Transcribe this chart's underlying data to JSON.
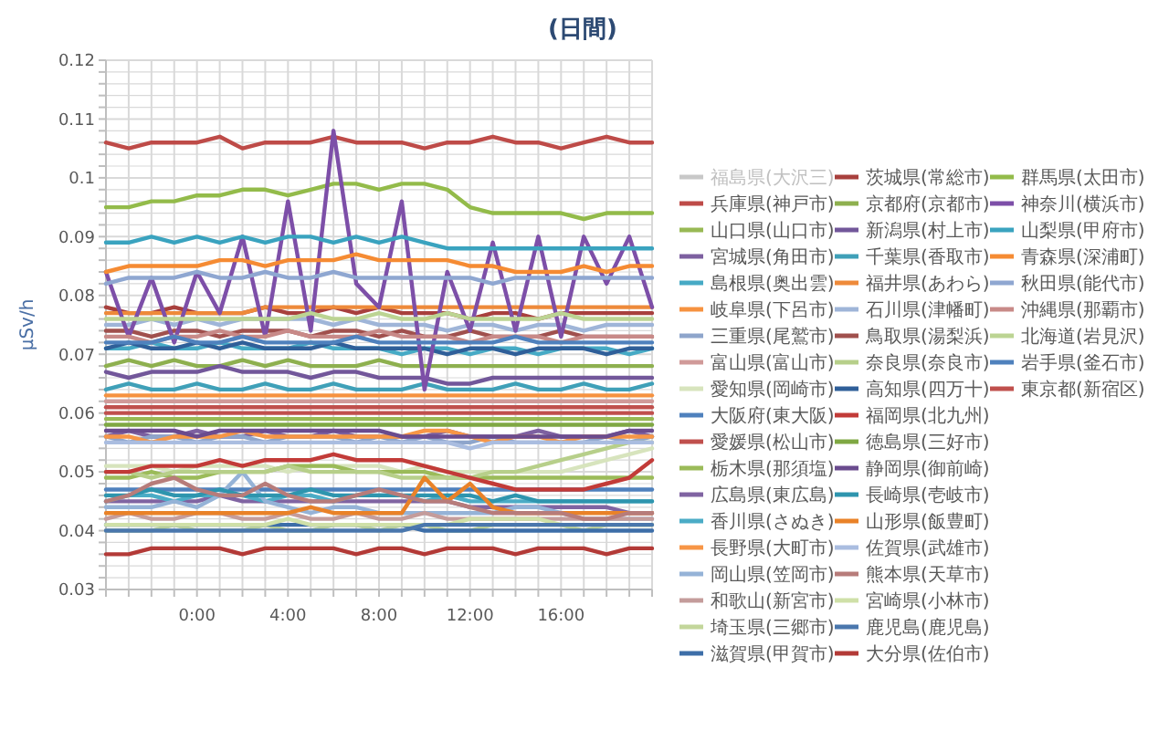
{
  "chart_data": {
    "type": "line",
    "title": "(日間)",
    "ylabel": "μSv/h",
    "legend": "right",
    "grid": true,
    "marker": "none",
    "line_style": "solid",
    "x": [
      -4,
      -3,
      -2,
      -1,
      0,
      1,
      2,
      3,
      4,
      5,
      6,
      7,
      8,
      9,
      10,
      11,
      12,
      13,
      14,
      15,
      16,
      17,
      18,
      19,
      20
    ],
    "xlim": [
      -4,
      20
    ],
    "xticks": [
      {
        "value": -4,
        "label": null
      },
      {
        "value": -3,
        "label": null
      },
      {
        "value": -2,
        "label": null
      },
      {
        "value": -1,
        "label": null
      },
      {
        "value": 0,
        "label": "0:00"
      },
      {
        "value": 1,
        "label": null
      },
      {
        "value": 2,
        "label": null
      },
      {
        "value": 3,
        "label": null
      },
      {
        "value": 4,
        "label": "4:00"
      },
      {
        "value": 5,
        "label": null
      },
      {
        "value": 6,
        "label": null
      },
      {
        "value": 7,
        "label": null
      },
      {
        "value": 8,
        "label": "8:00"
      },
      {
        "value": 9,
        "label": null
      },
      {
        "value": 10,
        "label": null
      },
      {
        "value": 11,
        "label": null
      },
      {
        "value": 12,
        "label": "12:00"
      },
      {
        "value": 13,
        "label": null
      },
      {
        "value": 14,
        "label": null
      },
      {
        "value": 15,
        "label": null
      },
      {
        "value": 16,
        "label": "16:00"
      },
      {
        "value": 17,
        "label": null
      },
      {
        "value": 18,
        "label": null
      },
      {
        "value": 19,
        "label": null
      },
      {
        "value": 20,
        "label": null
      }
    ],
    "ylim": [
      0.03,
      0.12
    ],
    "yticks": [
      0.03,
      {
        "value": 0.032,
        "label": null
      },
      {
        "value": 0.034,
        "label": null
      },
      {
        "value": 0.036,
        "label": null
      },
      {
        "value": 0.038,
        "label": null
      },
      0.04,
      {
        "value": 0.042,
        "label": null
      },
      {
        "value": 0.044,
        "label": null
      },
      {
        "value": 0.046,
        "label": null
      },
      {
        "value": 0.048,
        "label": null
      },
      0.05,
      {
        "value": 0.052,
        "label": null
      },
      {
        "value": 0.054,
        "label": null
      },
      {
        "value": 0.056,
        "label": null
      },
      {
        "value": 0.058,
        "label": null
      },
      0.06,
      {
        "value": 0.062,
        "label": null
      },
      {
        "value": 0.064,
        "label": null
      },
      {
        "value": 0.066,
        "label": null
      },
      {
        "value": 0.068,
        "label": null
      },
      0.07,
      {
        "value": 0.072,
        "label": null
      },
      {
        "value": 0.074,
        "label": null
      },
      {
        "value": 0.076,
        "label": null
      },
      {
        "value": 0.078,
        "label": null
      },
      0.08,
      {
        "value": 0.082,
        "label": null
      },
      {
        "value": 0.084,
        "label": null
      },
      {
        "value": 0.086,
        "label": null
      },
      {
        "value": 0.088,
        "label": null
      },
      0.09,
      {
        "value": 0.092,
        "label": null
      },
      {
        "value": 0.094,
        "label": null
      },
      {
        "value": 0.096,
        "label": null
      },
      {
        "value": 0.098,
        "label": null
      },
      {
        "value": 0.1,
        "label": "0.1"
      },
      {
        "value": 0.102,
        "label": null
      },
      {
        "value": 0.104,
        "label": null
      },
      {
        "value": 0.106,
        "label": null
      },
      {
        "value": 0.108,
        "label": null
      },
      0.11,
      {
        "value": 0.112,
        "label": null
      },
      {
        "value": 0.114,
        "label": null
      },
      {
        "value": 0.116,
        "label": null
      },
      {
        "value": 0.118,
        "label": null
      },
      0.12
    ],
    "series": [
      {
        "name": "福島県(大沢三)",
        "color": "#c8c8c8",
        "values": [
          null,
          null,
          null,
          null,
          null,
          null,
          null,
          null,
          null,
          null,
          null,
          null,
          null,
          null,
          null,
          null,
          null,
          null,
          null,
          null,
          null,
          null,
          null,
          null,
          null
        ]
      },
      {
        "name": "兵庫県(神戸市)",
        "color": "#be4b48",
        "values": [
          0.106,
          0.105,
          0.106,
          0.106,
          0.106,
          0.107,
          0.105,
          0.106,
          0.106,
          0.106,
          0.107,
          0.106,
          0.106,
          0.106,
          0.105,
          0.106,
          0.106,
          0.107,
          0.106,
          0.106,
          0.105,
          0.106,
          0.107,
          0.106,
          0.106
        ]
      },
      {
        "name": "山口県(山口市)",
        "color": "#98b954",
        "values": [
          0.059,
          0.059,
          0.059,
          0.059,
          0.059,
          0.059,
          0.059,
          0.059,
          0.059,
          0.059,
          0.059,
          0.059,
          0.059,
          0.059,
          0.059,
          0.059,
          0.059,
          0.059,
          0.059,
          0.059,
          0.059,
          0.059,
          0.059,
          0.059,
          0.059
        ]
      },
      {
        "name": "宮城県(角田市)",
        "color": "#7d60a0",
        "values": [
          0.056,
          0.057,
          0.056,
          0.056,
          0.057,
          0.056,
          0.056,
          0.057,
          0.056,
          0.056,
          0.057,
          0.056,
          0.056,
          0.056,
          0.056,
          0.057,
          0.056,
          0.056,
          0.056,
          0.057,
          0.056,
          0.056,
          0.056,
          0.057,
          0.056
        ]
      },
      {
        "name": "島根県(奥出雲)",
        "color": "#46aac5",
        "values": [
          0.071,
          0.071,
          0.072,
          0.071,
          0.071,
          0.072,
          0.071,
          0.071,
          0.071,
          0.072,
          0.071,
          0.071,
          0.071,
          0.07,
          0.071,
          0.071,
          0.07,
          0.071,
          0.071,
          0.07,
          0.071,
          0.071,
          0.071,
          0.07,
          0.071
        ]
      },
      {
        "name": "岐阜県(下呂市)",
        "color": "#f69240",
        "values": [
          0.063,
          0.063,
          0.063,
          0.063,
          0.063,
          0.063,
          0.063,
          0.063,
          0.063,
          0.063,
          0.063,
          0.063,
          0.063,
          0.063,
          0.063,
          0.063,
          0.063,
          0.063,
          0.063,
          0.063,
          0.063,
          0.063,
          0.063,
          0.063,
          0.063
        ]
      },
      {
        "name": "三重県(尾鷲市)",
        "color": "#8ea5cb",
        "values": [
          0.056,
          0.055,
          0.056,
          0.056,
          0.055,
          0.056,
          0.056,
          0.055,
          0.056,
          0.056,
          0.056,
          0.055,
          0.056,
          0.055,
          0.056,
          0.055,
          0.055,
          0.056,
          0.055,
          0.055,
          0.055,
          0.055,
          0.056,
          0.055,
          0.056
        ]
      },
      {
        "name": "富山県(富山市)",
        "color": "#d09a99",
        "values": [
          0.062,
          0.062,
          0.062,
          0.062,
          0.062,
          0.062,
          0.062,
          0.062,
          0.062,
          0.062,
          0.062,
          0.062,
          0.062,
          0.062,
          0.062,
          0.062,
          0.062,
          0.062,
          0.062,
          0.062,
          0.062,
          0.062,
          0.062,
          0.062,
          0.062
        ]
      },
      {
        "name": "愛知県(岡崎市)",
        "color": "#d7e4bd",
        "values": [
          0.051,
          0.051,
          0.051,
          0.05,
          0.051,
          0.051,
          0.051,
          0.051,
          0.05,
          0.051,
          0.051,
          0.051,
          0.051,
          0.05,
          0.051,
          0.05,
          0.05,
          0.05,
          0.05,
          0.05,
          0.05,
          0.051,
          0.052,
          0.053,
          0.054
        ]
      },
      {
        "name": "大阪府(東大阪)",
        "color": "#4f81bd",
        "values": [
          0.047,
          0.047,
          0.047,
          0.047,
          0.047,
          0.047,
          0.047,
          0.047,
          0.047,
          0.047,
          0.047,
          0.047,
          0.047,
          0.047,
          0.047,
          0.047,
          0.047,
          0.047,
          0.047,
          0.047,
          0.047,
          0.047,
          0.047,
          0.047,
          0.047
        ]
      },
      {
        "name": "愛媛県(松山市)",
        "color": "#c0504d",
        "values": [
          0.061,
          0.061,
          0.061,
          0.061,
          0.061,
          0.061,
          0.061,
          0.061,
          0.061,
          0.061,
          0.061,
          0.061,
          0.061,
          0.061,
          0.061,
          0.061,
          0.061,
          0.061,
          0.061,
          0.061,
          0.061,
          0.061,
          0.061,
          0.061,
          0.061
        ]
      },
      {
        "name": "栃木県(那須塩)",
        "color": "#9bbb59",
        "values": [
          0.049,
          0.049,
          0.05,
          0.049,
          0.049,
          0.05,
          0.05,
          0.05,
          0.051,
          0.051,
          0.051,
          0.05,
          0.05,
          0.05,
          0.05,
          0.049,
          0.049,
          0.049,
          0.049,
          0.049,
          0.049,
          0.049,
          0.049,
          0.049,
          0.049
        ]
      },
      {
        "name": "広島県(東広島)",
        "color": "#8064a2",
        "values": [
          0.045,
          0.045,
          0.045,
          0.045,
          0.045,
          0.046,
          0.045,
          0.045,
          0.045,
          0.045,
          0.045,
          0.045,
          0.045,
          0.045,
          0.045,
          0.045,
          0.044,
          0.044,
          0.044,
          0.044,
          0.044,
          0.044,
          0.044,
          0.043,
          0.043
        ]
      },
      {
        "name": "香川県(さぬき)",
        "color": "#4bacc6",
        "values": [
          0.045,
          0.046,
          0.046,
          0.045,
          0.046,
          0.046,
          0.046,
          0.045,
          0.046,
          0.046,
          0.045,
          0.046,
          0.046,
          0.046,
          0.045,
          0.046,
          0.045,
          0.045,
          0.045,
          0.045,
          0.045,
          0.045,
          0.045,
          0.045,
          0.045
        ]
      },
      {
        "name": "長野県(大町市)",
        "color": "#f79646",
        "values": [
          0.056,
          0.056,
          0.055,
          0.056,
          0.056,
          0.056,
          0.057,
          0.056,
          0.056,
          0.056,
          0.056,
          0.056,
          0.056,
          0.056,
          0.057,
          0.057,
          0.056,
          0.055,
          0.056,
          0.056,
          0.055,
          0.056,
          0.056,
          0.056,
          0.056
        ]
      },
      {
        "name": "岡山県(笠岡市)",
        "color": "#95b3d7",
        "values": [
          0.044,
          0.044,
          0.044,
          0.045,
          0.044,
          0.046,
          0.05,
          0.045,
          0.044,
          0.043,
          0.044,
          0.044,
          0.043,
          0.043,
          0.043,
          0.043,
          0.043,
          0.043,
          0.044,
          0.044,
          0.043,
          0.042,
          0.042,
          0.042,
          0.042
        ]
      },
      {
        "name": "和歌山(新宮市)",
        "color": "#c49c9b",
        "values": [
          0.042,
          0.043,
          0.042,
          0.042,
          0.043,
          0.043,
          0.042,
          0.042,
          0.043,
          0.042,
          0.042,
          0.043,
          0.042,
          0.042,
          0.043,
          0.042,
          0.042,
          0.042,
          0.042,
          0.042,
          0.042,
          0.042,
          0.042,
          0.042,
          0.042
        ]
      },
      {
        "name": "埼玉県(三郷市)",
        "color": "#c3d69b",
        "values": [
          0.04,
          0.04,
          0.04,
          0.041,
          0.04,
          0.04,
          0.04,
          0.041,
          0.04,
          0.04,
          0.041,
          0.041,
          0.04,
          0.041,
          0.041,
          0.04,
          0.04,
          0.041,
          0.041,
          0.041,
          0.041,
          0.04,
          0.041,
          0.041,
          0.041
        ]
      },
      {
        "name": "滋賀県(甲賀市)",
        "color": "#3d6ea8",
        "values": [
          0.041,
          0.041,
          0.041,
          0.041,
          0.041,
          0.041,
          0.041,
          0.041,
          0.041,
          0.041,
          0.041,
          0.041,
          0.041,
          0.041,
          0.04,
          0.04,
          0.04,
          0.04,
          0.04,
          0.04,
          0.04,
          0.04,
          0.04,
          0.04,
          0.04
        ]
      },
      {
        "name": "茨城県(常総市)",
        "color": "#a8403d",
        "values": [
          0.078,
          0.077,
          0.077,
          0.078,
          0.077,
          0.077,
          0.077,
          0.078,
          0.077,
          0.077,
          0.078,
          0.077,
          0.078,
          0.077,
          0.077,
          0.077,
          0.076,
          0.077,
          0.077,
          0.076,
          0.077,
          0.077,
          0.077,
          0.077,
          0.077
        ]
      },
      {
        "name": "京都府(京都市)",
        "color": "#8eb04f",
        "values": [
          0.068,
          0.069,
          0.068,
          0.069,
          0.068,
          0.068,
          0.069,
          0.068,
          0.069,
          0.068,
          0.068,
          0.068,
          0.069,
          0.068,
          0.068,
          0.068,
          0.068,
          0.068,
          0.068,
          0.068,
          0.068,
          0.068,
          0.068,
          0.068,
          0.068
        ]
      },
      {
        "name": "新潟県(村上市)",
        "color": "#72579a",
        "values": [
          0.067,
          0.066,
          0.067,
          0.067,
          0.067,
          0.068,
          0.067,
          0.067,
          0.067,
          0.066,
          0.067,
          0.067,
          0.066,
          0.066,
          0.066,
          0.065,
          0.065,
          0.066,
          0.066,
          0.066,
          0.066,
          0.066,
          0.066,
          0.066,
          0.066
        ]
      },
      {
        "name": "千葉県(香取市)",
        "color": "#3fa0b8",
        "values": [
          0.064,
          0.065,
          0.064,
          0.064,
          0.065,
          0.064,
          0.064,
          0.065,
          0.064,
          0.064,
          0.065,
          0.064,
          0.064,
          0.064,
          0.065,
          0.064,
          0.064,
          0.064,
          0.065,
          0.064,
          0.064,
          0.065,
          0.064,
          0.064,
          0.065
        ]
      },
      {
        "name": "福井県(あわら)",
        "color": "#ee8a3a",
        "values": [
          0.077,
          0.077,
          0.077,
          0.077,
          0.077,
          0.077,
          0.077,
          0.078,
          0.078,
          0.078,
          0.078,
          0.078,
          0.078,
          0.078,
          0.078,
          0.078,
          0.078,
          0.078,
          0.078,
          0.078,
          0.078,
          0.078,
          0.078,
          0.078,
          0.078
        ]
      },
      {
        "name": "石川県(津幡町)",
        "color": "#9fb5d8",
        "values": [
          0.075,
          0.075,
          0.076,
          0.075,
          0.076,
          0.075,
          0.076,
          0.076,
          0.076,
          0.076,
          0.075,
          0.076,
          0.075,
          0.075,
          0.075,
          0.074,
          0.075,
          0.075,
          0.074,
          0.075,
          0.075,
          0.074,
          0.075,
          0.075,
          0.075
        ]
      },
      {
        "name": "鳥取県(湯梨浜)",
        "color": "#a0504d",
        "values": [
          0.074,
          0.074,
          0.073,
          0.074,
          0.074,
          0.073,
          0.074,
          0.074,
          0.074,
          0.073,
          0.074,
          0.074,
          0.073,
          0.074,
          0.073,
          0.073,
          0.074,
          0.073,
          0.073,
          0.073,
          0.074,
          0.073,
          0.073,
          0.073,
          0.073
        ]
      },
      {
        "name": "奈良県(奈良市)",
        "color": "#b7cf8a",
        "values": [
          0.05,
          0.05,
          0.049,
          0.05,
          0.05,
          0.05,
          0.05,
          0.05,
          0.051,
          0.05,
          0.05,
          0.05,
          0.05,
          0.049,
          0.049,
          0.049,
          0.049,
          0.05,
          0.05,
          0.051,
          0.052,
          0.053,
          0.054,
          0.055,
          0.055
        ]
      },
      {
        "name": "高知県(四万十)",
        "color": "#2f5f99",
        "values": [
          0.071,
          0.072,
          0.071,
          0.071,
          0.072,
          0.071,
          0.072,
          0.071,
          0.071,
          0.071,
          0.072,
          0.071,
          0.071,
          0.071,
          0.071,
          0.07,
          0.071,
          0.071,
          0.07,
          0.071,
          0.071,
          0.071,
          0.07,
          0.071,
          0.071
        ]
      },
      {
        "name": "福岡県(北九州)",
        "color": "#c23b38",
        "values": [
          0.05,
          0.05,
          0.051,
          0.051,
          0.051,
          0.052,
          0.051,
          0.052,
          0.052,
          0.052,
          0.053,
          0.052,
          0.052,
          0.052,
          0.051,
          0.05,
          0.049,
          0.048,
          0.047,
          0.047,
          0.047,
          0.047,
          0.048,
          0.049,
          0.052
        ]
      },
      {
        "name": "徳島県(三好市)",
        "color": "#7fa843",
        "values": [
          0.058,
          0.058,
          0.058,
          0.058,
          0.058,
          0.058,
          0.058,
          0.058,
          0.058,
          0.058,
          0.058,
          0.058,
          0.058,
          0.058,
          0.058,
          0.058,
          0.058,
          0.058,
          0.058,
          0.058,
          0.058,
          0.058,
          0.058,
          0.058,
          0.058
        ]
      },
      {
        "name": "静岡県(御前崎)",
        "color": "#6a4b8e",
        "values": [
          0.057,
          0.057,
          0.057,
          0.057,
          0.056,
          0.057,
          0.057,
          0.057,
          0.057,
          0.057,
          0.057,
          0.057,
          0.057,
          0.056,
          0.056,
          0.056,
          0.056,
          0.056,
          0.056,
          0.056,
          0.056,
          0.056,
          0.056,
          0.057,
          0.057
        ]
      },
      {
        "name": "長崎県(壱岐市)",
        "color": "#2e95ae",
        "values": [
          0.046,
          0.046,
          0.047,
          0.046,
          0.046,
          0.047,
          0.046,
          0.046,
          0.046,
          0.047,
          0.046,
          0.046,
          0.046,
          0.046,
          0.046,
          0.046,
          0.046,
          0.045,
          0.046,
          0.045,
          0.045,
          0.045,
          0.045,
          0.045,
          0.045
        ]
      },
      {
        "name": "山形県(飯豊町)",
        "color": "#e98228",
        "values": [
          0.043,
          0.043,
          0.043,
          0.043,
          0.043,
          0.043,
          0.043,
          0.043,
          0.043,
          0.044,
          0.043,
          0.043,
          0.043,
          0.043,
          0.049,
          0.045,
          0.048,
          0.044,
          0.043,
          0.043,
          0.043,
          0.043,
          0.043,
          0.043,
          0.043
        ]
      },
      {
        "name": "佐賀県(武雄市)",
        "color": "#aabde0",
        "values": [
          0.055,
          0.055,
          0.055,
          0.055,
          0.055,
          0.055,
          0.055,
          0.055,
          0.055,
          0.055,
          0.055,
          0.055,
          0.055,
          0.055,
          0.055,
          0.055,
          0.054,
          0.055,
          0.055,
          0.055,
          0.055,
          0.055,
          0.055,
          0.055,
          0.055
        ]
      },
      {
        "name": "熊本県(天草市)",
        "color": "#b77c7a",
        "values": [
          0.045,
          0.046,
          0.048,
          0.049,
          0.047,
          0.046,
          0.046,
          0.048,
          0.046,
          0.045,
          0.045,
          0.046,
          0.047,
          0.046,
          0.045,
          0.045,
          0.044,
          0.043,
          0.043,
          0.043,
          0.043,
          0.042,
          0.042,
          0.043,
          0.043
        ]
      },
      {
        "name": "宮崎県(小林市)",
        "color": "#cfe0a8",
        "values": [
          0.041,
          0.041,
          0.041,
          0.041,
          0.041,
          0.041,
          0.041,
          0.041,
          0.042,
          0.041,
          0.041,
          0.041,
          0.041,
          0.041,
          0.041,
          0.041,
          0.042,
          0.042,
          0.042,
          0.042,
          0.041,
          0.041,
          0.041,
          0.041,
          0.041
        ]
      },
      {
        "name": "鹿児島(鹿児島)",
        "color": "#4a77ad",
        "values": [
          0.04,
          0.04,
          0.04,
          0.04,
          0.04,
          0.04,
          0.04,
          0.04,
          0.04,
          0.04,
          0.04,
          0.04,
          0.04,
          0.04,
          0.041,
          0.041,
          0.041,
          0.041,
          0.041,
          0.041,
          0.041,
          0.041,
          0.041,
          0.041,
          0.041
        ]
      },
      {
        "name": "大分県(佐伯市)",
        "color": "#b33a37",
        "values": [
          0.036,
          0.036,
          0.037,
          0.037,
          0.037,
          0.037,
          0.036,
          0.037,
          0.037,
          0.037,
          0.037,
          0.036,
          0.037,
          0.037,
          0.036,
          0.037,
          0.037,
          0.037,
          0.036,
          0.037,
          0.037,
          0.037,
          0.036,
          0.037,
          0.037
        ]
      },
      {
        "name": "群馬県(太田市)",
        "color": "#93bb4a",
        "values": [
          0.095,
          0.095,
          0.096,
          0.096,
          0.097,
          0.097,
          0.098,
          0.098,
          0.097,
          0.098,
          0.099,
          0.099,
          0.098,
          0.099,
          0.099,
          0.098,
          0.095,
          0.094,
          0.094,
          0.094,
          0.094,
          0.093,
          0.094,
          0.094,
          0.094
        ]
      },
      {
        "name": "神奈川(横浜市)",
        "color": "#7d4fa8",
        "values": [
          0.084,
          0.073,
          0.083,
          0.072,
          0.084,
          0.077,
          0.09,
          0.073,
          0.096,
          0.074,
          0.108,
          0.082,
          0.078,
          0.096,
          0.064,
          0.084,
          0.074,
          0.089,
          0.074,
          0.09,
          0.073,
          0.09,
          0.082,
          0.09,
          0.078
        ]
      },
      {
        "name": "山梨県(甲府市)",
        "color": "#3aa3bf",
        "values": [
          0.089,
          0.089,
          0.09,
          0.089,
          0.09,
          0.089,
          0.09,
          0.089,
          0.09,
          0.09,
          0.089,
          0.09,
          0.089,
          0.09,
          0.089,
          0.088,
          0.088,
          0.088,
          0.088,
          0.088,
          0.088,
          0.088,
          0.088,
          0.088,
          0.088
        ]
      },
      {
        "name": "青森県(深浦町)",
        "color": "#f58b33",
        "values": [
          0.084,
          0.085,
          0.085,
          0.085,
          0.085,
          0.086,
          0.086,
          0.085,
          0.086,
          0.086,
          0.086,
          0.087,
          0.086,
          0.086,
          0.086,
          0.086,
          0.085,
          0.085,
          0.084,
          0.084,
          0.084,
          0.085,
          0.084,
          0.085,
          0.085
        ]
      },
      {
        "name": "秋田県(能代市)",
        "color": "#8fa7d1",
        "values": [
          0.082,
          0.083,
          0.083,
          0.083,
          0.084,
          0.083,
          0.083,
          0.084,
          0.083,
          0.083,
          0.084,
          0.083,
          0.083,
          0.083,
          0.083,
          0.083,
          0.083,
          0.082,
          0.083,
          0.083,
          0.083,
          0.083,
          0.083,
          0.083,
          0.083
        ]
      },
      {
        "name": "沖縄県(那覇市)",
        "color": "#c88a88",
        "values": [
          0.073,
          0.073,
          0.072,
          0.073,
          0.073,
          0.074,
          0.073,
          0.073,
          0.074,
          0.073,
          0.073,
          0.073,
          0.074,
          0.073,
          0.073,
          0.073,
          0.072,
          0.073,
          0.073,
          0.073,
          0.072,
          0.073,
          0.073,
          0.073,
          0.073
        ]
      },
      {
        "name": "北海道(岩見沢)",
        "color": "#bcd493",
        "values": [
          0.076,
          0.076,
          0.076,
          0.076,
          0.076,
          0.076,
          0.076,
          0.076,
          0.076,
          0.077,
          0.076,
          0.076,
          0.077,
          0.076,
          0.076,
          0.077,
          0.076,
          0.076,
          0.076,
          0.076,
          0.077,
          0.076,
          0.076,
          0.076,
          0.076
        ]
      },
      {
        "name": "岩手県(釜石市)",
        "color": "#4f81bd",
        "values": [
          0.072,
          0.072,
          0.072,
          0.073,
          0.072,
          0.072,
          0.073,
          0.072,
          0.072,
          0.072,
          0.072,
          0.073,
          0.072,
          0.072,
          0.072,
          0.072,
          0.072,
          0.072,
          0.073,
          0.072,
          0.072,
          0.072,
          0.072,
          0.072,
          0.072
        ]
      },
      {
        "name": "東京都(新宿区)",
        "color": "#c0504d",
        "values": [
          0.06,
          0.06,
          0.06,
          0.06,
          0.06,
          0.06,
          0.06,
          0.06,
          0.06,
          0.06,
          0.06,
          0.06,
          0.06,
          0.06,
          0.06,
          0.06,
          0.06,
          0.06,
          0.06,
          0.06,
          0.06,
          0.06,
          0.06,
          0.06,
          0.06
        ]
      }
    ]
  }
}
